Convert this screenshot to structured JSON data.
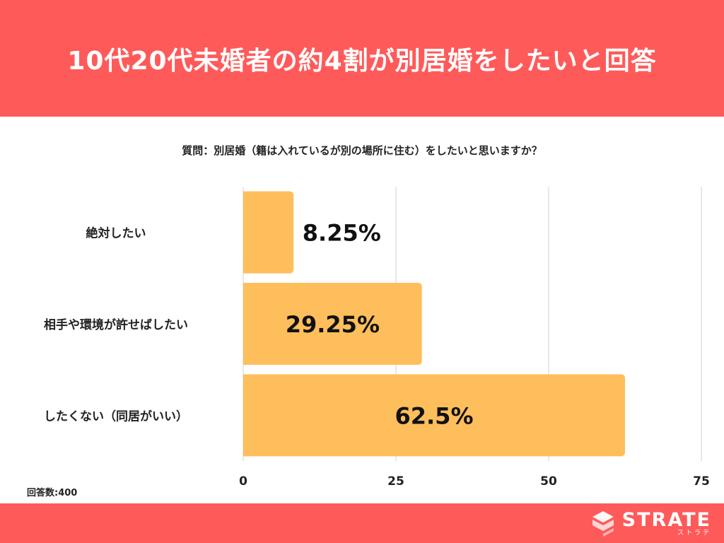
{
  "header": {
    "title": "10代20代未婚者の約4割が別居婚をしたいと回答"
  },
  "question": "質問：別居婚（籍は入れているが別の場所に住む）をしたいと思いますか？",
  "answer_count": "回答数:400",
  "brand": {
    "name": "STRATE",
    "sub": "ストラテ"
  },
  "colors": {
    "header": "#ff5a5a",
    "bar": "#ffbe5c",
    "grid": "#d0d0d0",
    "text": "#222222"
  },
  "chart_data": {
    "type": "bar",
    "orientation": "horizontal",
    "categories": [
      "絶対したい",
      "相手や環境が許せばしたい",
      "したくない（同居がいい）"
    ],
    "values": [
      8.25,
      29.25,
      62.5
    ],
    "value_labels": [
      "8.25%",
      "29.25%",
      "62.5%"
    ],
    "xticks": [
      "0",
      "25",
      "50",
      "75"
    ],
    "xlim": [
      0,
      75
    ],
    "grid": true,
    "legend": "none"
  }
}
